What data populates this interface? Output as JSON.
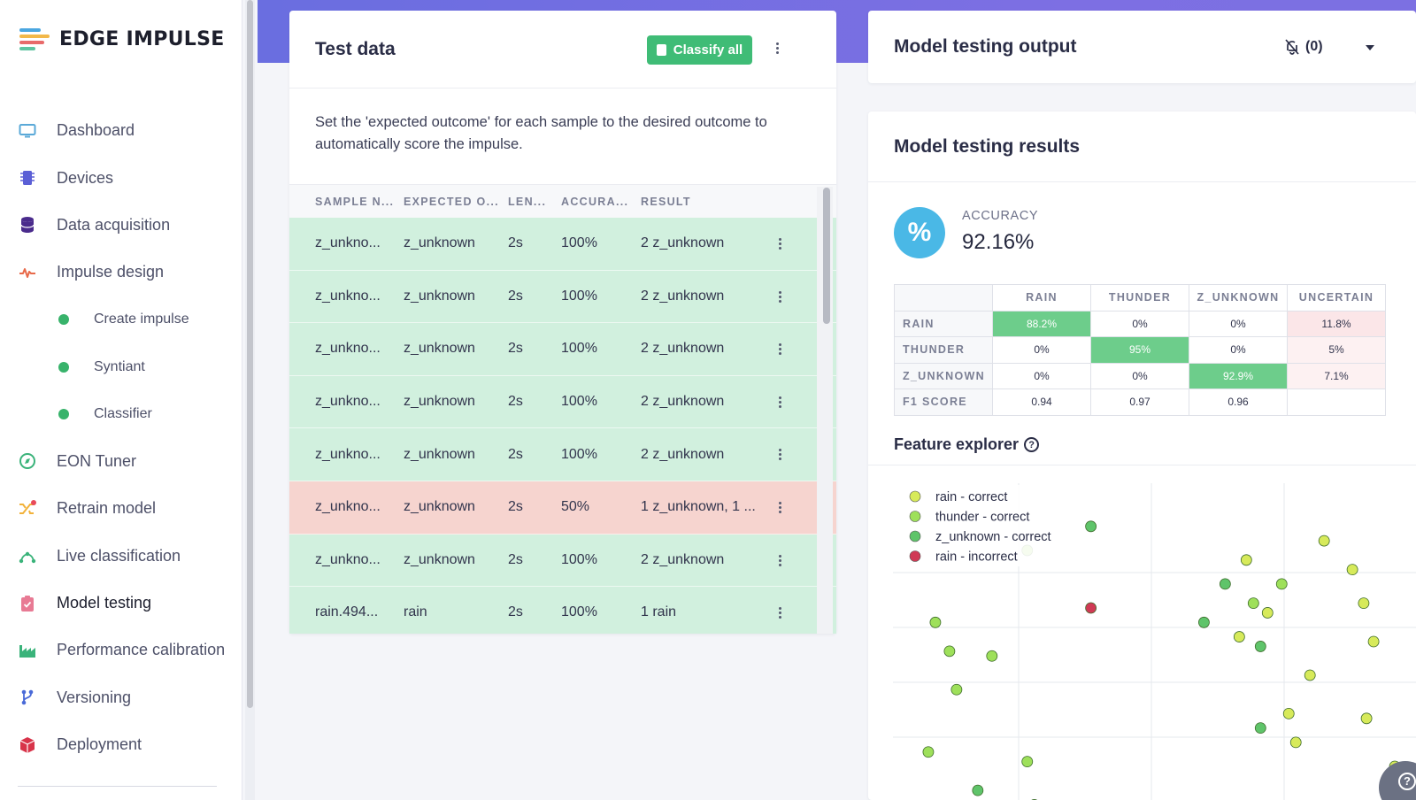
{
  "brand": {
    "name": "EDGE IMPULSE"
  },
  "nav": {
    "items": [
      {
        "label": "Dashboard",
        "icon": "monitor-icon"
      },
      {
        "label": "Devices",
        "icon": "chip-icon"
      },
      {
        "label": "Data acquisition",
        "icon": "database-icon"
      },
      {
        "label": "Impulse design",
        "icon": "pulse-icon"
      },
      {
        "label": "Create impulse",
        "sub": true
      },
      {
        "label": "Syntiant",
        "sub": true
      },
      {
        "label": "Classifier",
        "sub": true
      },
      {
        "label": "EON Tuner",
        "icon": "compass-icon"
      },
      {
        "label": "Retrain model",
        "icon": "shuffle-icon"
      },
      {
        "label": "Live classification",
        "icon": "nodes-icon"
      },
      {
        "label": "Model testing",
        "icon": "clipboard-icon",
        "active": true
      },
      {
        "label": "Performance calibration",
        "icon": "factory-icon"
      },
      {
        "label": "Versioning",
        "icon": "branch-icon"
      },
      {
        "label": "Deployment",
        "icon": "box-icon"
      }
    ]
  },
  "test_data": {
    "title": "Test data",
    "classify_label": "Classify all",
    "description": "Set the 'expected outcome' for each sample to the desired outcome to automatically score the impulse.",
    "columns": [
      "SAMPLE N...",
      "EXPECTED O...",
      "LEN...",
      "ACCURA...",
      "RESULT"
    ],
    "rows": [
      {
        "sample": "z_unkno...",
        "expected": "z_unknown",
        "length": "2s",
        "accuracy": "100%",
        "result": "2 z_unknown",
        "status": "ok"
      },
      {
        "sample": "z_unkno...",
        "expected": "z_unknown",
        "length": "2s",
        "accuracy": "100%",
        "result": "2 z_unknown",
        "status": "ok"
      },
      {
        "sample": "z_unkno...",
        "expected": "z_unknown",
        "length": "2s",
        "accuracy": "100%",
        "result": "2 z_unknown",
        "status": "ok"
      },
      {
        "sample": "z_unkno...",
        "expected": "z_unknown",
        "length": "2s",
        "accuracy": "100%",
        "result": "2 z_unknown",
        "status": "ok"
      },
      {
        "sample": "z_unkno...",
        "expected": "z_unknown",
        "length": "2s",
        "accuracy": "100%",
        "result": "2 z_unknown",
        "status": "ok"
      },
      {
        "sample": "z_unkno...",
        "expected": "z_unknown",
        "length": "2s",
        "accuracy": "50%",
        "result": "1 z_unknown, 1 ...",
        "status": "bad"
      },
      {
        "sample": "z_unkno...",
        "expected": "z_unknown",
        "length": "2s",
        "accuracy": "100%",
        "result": "2 z_unknown",
        "status": "ok"
      },
      {
        "sample": "rain.494...",
        "expected": "rain",
        "length": "2s",
        "accuracy": "100%",
        "result": "1 rain",
        "status": "ok"
      }
    ]
  },
  "output": {
    "title": "Model testing output",
    "notification_count": "(0)"
  },
  "results": {
    "title": "Model testing results",
    "accuracy_label": "ACCURACY",
    "accuracy_value": "92.16%",
    "accuracy_symbol": "%",
    "matrix": {
      "columns": [
        "RAIN",
        "THUNDER",
        "Z_UNKNOWN",
        "UNCERTAIN"
      ],
      "rows": [
        {
          "label": "RAIN",
          "cells": [
            "88.2%",
            "0%",
            "0%",
            "11.8%"
          ]
        },
        {
          "label": "THUNDER",
          "cells": [
            "0%",
            "95%",
            "0%",
            "5%"
          ]
        },
        {
          "label": "Z_UNKNOWN",
          "cells": [
            "0%",
            "0%",
            "92.9%",
            "7.1%"
          ]
        },
        {
          "label": "F1 SCORE",
          "cells": [
            "0.94",
            "0.97",
            "0.96",
            ""
          ]
        }
      ]
    },
    "feature_explorer": {
      "title": "Feature explorer",
      "legend": [
        {
          "label": "rain - correct",
          "color": "#d7ea5a"
        },
        {
          "label": "thunder - correct",
          "color": "#9ee05a"
        },
        {
          "label": "z_unknown - correct",
          "color": "#5fc46a"
        },
        {
          "label": "rain - incorrect",
          "color": "#d03a55"
        }
      ]
    }
  },
  "chart_data": {
    "type": "scatter",
    "title": "Feature explorer",
    "series": [
      {
        "name": "rain - correct",
        "points": [
          [
            2.5,
            5.5
          ],
          [
            2.65,
            4.95
          ],
          [
            3.05,
            5.7
          ],
          [
            3.25,
            5.4
          ],
          [
            3.33,
            5.05
          ],
          [
            2.95,
            4.3
          ],
          [
            3.4,
            4.65
          ],
          [
            2.8,
            3.9
          ],
          [
            2.85,
            3.6
          ],
          [
            3.55,
            3.35
          ],
          [
            2.45,
            4.7
          ],
          [
            3.35,
            3.85
          ]
        ]
      },
      {
        "name": "thunder - correct",
        "points": [
          [
            0.95,
            5.6
          ],
          [
            0.3,
            4.85
          ],
          [
            0.4,
            4.55
          ],
          [
            0.7,
            4.5
          ],
          [
            0.45,
            4.15
          ],
          [
            0.25,
            3.5
          ],
          [
            2.55,
            5.05
          ],
          [
            2.75,
            5.25
          ],
          [
            0.95,
            3.4
          ]
        ]
      },
      {
        "name": "z_unknown - correct",
        "points": [
          [
            1.4,
            5.85
          ],
          [
            2.35,
            5.25
          ],
          [
            2.2,
            4.85
          ],
          [
            2.6,
            4.6
          ],
          [
            2.6,
            3.75
          ],
          [
            0.6,
            3.1
          ],
          [
            1.0,
            2.95
          ]
        ]
      },
      {
        "name": "rain - incorrect",
        "points": [
          [
            1.4,
            5.0
          ]
        ]
      }
    ],
    "xlim": [
      0,
      3.7
    ],
    "ylim": [
      3.0,
      6.3
    ]
  }
}
